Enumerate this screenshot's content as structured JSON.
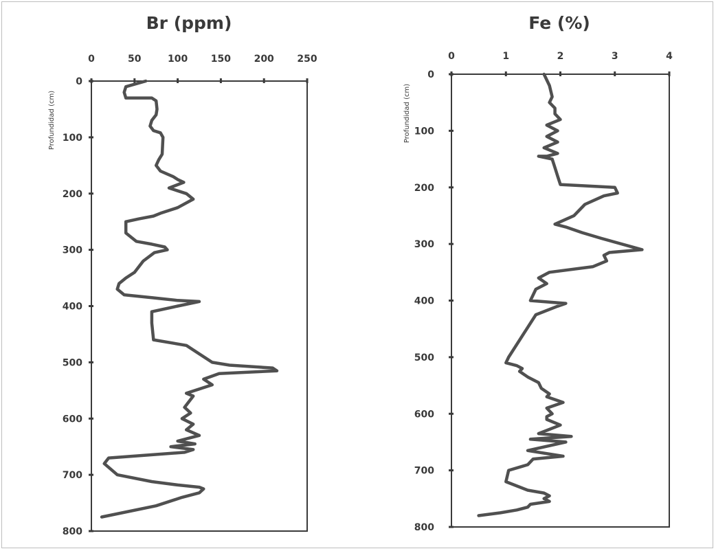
{
  "chart_data": [
    {
      "type": "line",
      "title": "Br (ppm)",
      "ylabel": "Profundidad (cm)",
      "xlabel": "",
      "xlim": [
        0,
        250
      ],
      "ylim": [
        0,
        800
      ],
      "y_inverted": true,
      "x_axis_position": "top",
      "x_ticks": [
        "0",
        "50",
        "100",
        "150",
        "200",
        "250"
      ],
      "y_ticks": [
        "0",
        "100",
        "200",
        "300",
        "400",
        "500",
        "600",
        "700",
        "800"
      ],
      "series": [
        {
          "x": [
            63,
            40,
            38,
            40,
            70,
            75,
            76,
            75,
            70,
            68,
            72,
            80,
            83,
            82,
            78,
            75,
            80,
            95,
            100,
            107,
            90,
            110,
            118,
            100,
            80,
            72,
            55,
            40,
            40,
            52,
            70,
            85,
            88,
            73,
            60,
            50,
            40,
            32,
            30,
            38,
            70,
            100,
            125,
            100,
            70,
            70,
            72,
            110,
            140,
            160,
            210,
            215,
            148,
            130,
            140,
            110,
            118,
            108,
            115,
            105,
            118,
            110,
            125,
            100,
            120,
            92,
            118,
            108,
            20,
            15,
            30,
            70,
            100,
            125,
            130,
            125,
            105,
            75,
            12
          ],
          "y": [
            0,
            10,
            20,
            30,
            30,
            35,
            50,
            60,
            70,
            80,
            88,
            92,
            100,
            130,
            140,
            150,
            160,
            170,
            175,
            180,
            190,
            200,
            210,
            225,
            235,
            240,
            245,
            250,
            270,
            285,
            290,
            295,
            300,
            305,
            320,
            340,
            350,
            360,
            370,
            380,
            385,
            390,
            392,
            400,
            410,
            430,
            460,
            470,
            500,
            505,
            510,
            515,
            520,
            530,
            540,
            555,
            560,
            580,
            590,
            600,
            610,
            620,
            630,
            640,
            645,
            650,
            655,
            660,
            670,
            680,
            700,
            712,
            718,
            722,
            725,
            732,
            740,
            755,
            775
          ]
        }
      ],
      "line_color": "#505050"
    },
    {
      "type": "line",
      "title": "Fe (%)",
      "ylabel": "Profundidad (cm)",
      "xlabel": "",
      "xlim": [
        0,
        4
      ],
      "ylim": [
        0,
        800
      ],
      "y_inverted": true,
      "x_axis_position": "top",
      "x_ticks": [
        "0",
        "1",
        "2",
        "3",
        "4"
      ],
      "y_ticks": [
        "0",
        "100",
        "200",
        "300",
        "400",
        "500",
        "600",
        "700",
        "800"
      ],
      "series": [
        {
          "x": [
            1.7,
            1.8,
            1.85,
            1.8,
            1.9,
            1.9,
            2.0,
            1.75,
            1.95,
            1.75,
            1.95,
            1.7,
            1.95,
            1.75,
            1.6,
            1.85,
            1.9,
            1.95,
            2.0,
            3.0,
            3.05,
            2.8,
            2.45,
            2.25,
            1.9,
            2.1,
            2.4,
            2.75,
            3.5,
            2.9,
            2.8,
            2.85,
            2.6,
            1.8,
            1.6,
            1.75,
            1.55,
            1.45,
            2.1,
            1.95,
            1.55,
            1.05,
            1.0,
            1.2,
            1.3,
            1.25,
            1.4,
            1.6,
            1.65,
            1.8,
            1.75,
            2.05,
            1.75,
            1.85,
            1.75,
            1.75,
            2.0,
            1.6,
            2.2,
            1.45,
            2.1,
            1.4,
            2.05,
            1.5,
            1.4,
            1.05,
            1.0,
            1.4,
            1.7,
            1.8,
            1.7,
            1.8,
            1.45,
            1.4,
            1.2,
            0.9,
            0.5
          ],
          "y": [
            0,
            20,
            40,
            50,
            60,
            70,
            80,
            90,
            100,
            110,
            120,
            130,
            140,
            145,
            145,
            150,
            165,
            180,
            195,
            200,
            210,
            215,
            230,
            250,
            265,
            270,
            280,
            290,
            310,
            315,
            320,
            330,
            340,
            350,
            360,
            370,
            380,
            400,
            405,
            410,
            425,
            500,
            510,
            515,
            520,
            525,
            535,
            545,
            555,
            565,
            570,
            580,
            590,
            600,
            605,
            610,
            620,
            635,
            640,
            645,
            650,
            665,
            675,
            680,
            690,
            700,
            720,
            735,
            740,
            745,
            750,
            755,
            760,
            765,
            770,
            775,
            780
          ]
        }
      ],
      "line_color": "#505050"
    }
  ]
}
